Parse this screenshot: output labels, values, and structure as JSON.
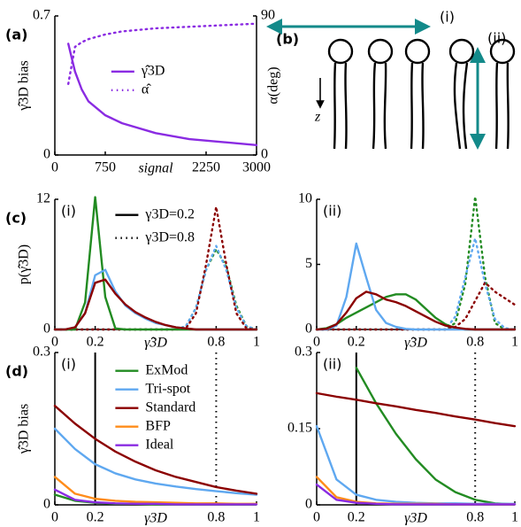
{
  "chart_data": [
    {
      "type": "line",
      "panel_label": "(a)",
      "xlabel": "signal",
      "ylabel": "γ̂3D bias",
      "y2label": "α(deg)",
      "x": [
        200,
        300,
        400,
        500,
        750,
        1000,
        1500,
        2000,
        2500,
        3000
      ],
      "xlim": [
        0,
        3000
      ],
      "xticks": [
        0,
        750,
        2250,
        3000
      ],
      "ylim": [
        0,
        0.7
      ],
      "yticks": [
        0,
        0.7
      ],
      "y2lim": [
        0,
        90
      ],
      "y2ticks": [
        0,
        90
      ],
      "legend": "center",
      "series": [
        {
          "name": "γ̂3D",
          "color": "#8a2be2",
          "dash": false,
          "values": [
            0.56,
            0.42,
            0.33,
            0.27,
            0.2,
            0.16,
            0.11,
            0.08,
            0.065,
            0.05
          ]
        },
        {
          "name": "α̂",
          "color": "#8a2be2",
          "dash": true,
          "axis": "y2",
          "values": [
            46,
            70,
            73,
            75,
            78,
            80,
            82,
            83,
            84,
            85
          ]
        }
      ]
    },
    {
      "type": "line",
      "panel_label": "(c)",
      "sub_label": "(i)",
      "xlabel": "γ̂3D",
      "ylabel": "p(γ̂3D)",
      "x": [
        0,
        0.05,
        0.1,
        0.15,
        0.2,
        0.25,
        0.3,
        0.35,
        0.4,
        0.45,
        0.5,
        0.55,
        0.6,
        0.65,
        0.7,
        0.75,
        0.8,
        0.85,
        0.9,
        0.95,
        1
      ],
      "xlim": [
        0,
        1
      ],
      "xticks": [
        0,
        0.2,
        0.8,
        1
      ],
      "ylim": [
        0,
        12
      ],
      "yticks": [
        0,
        12
      ],
      "legend": "upper center",
      "style_legend": [
        {
          "label": "γ3D=0.2",
          "dash": false
        },
        {
          "label": "γ3D=0.8",
          "dash": true
        }
      ],
      "series": [
        {
          "color": "#228b22",
          "dash": true,
          "values": [
            0,
            0,
            0,
            0,
            0,
            0,
            0,
            0,
            0,
            0,
            0,
            0,
            0,
            0.3,
            2,
            5.5,
            7.4,
            5.8,
            2.2,
            0.3,
            0
          ]
        },
        {
          "color": "#5fa8f0",
          "dash": true,
          "values": [
            0,
            0,
            0,
            0,
            0,
            0,
            0,
            0,
            0,
            0,
            0,
            0,
            0,
            0.3,
            2,
            5.5,
            7.7,
            5.5,
            2,
            0.3,
            0
          ]
        },
        {
          "color": "#8b0000",
          "dash": true,
          "values": [
            0,
            0,
            0,
            0,
            0,
            0,
            0,
            0,
            0,
            0,
            0,
            0,
            0,
            0.1,
            1.5,
            6,
            11.3,
            6,
            1.5,
            0.1,
            0
          ]
        },
        {
          "color": "#228b22",
          "dash": false,
          "values": [
            0,
            0,
            0,
            2.5,
            12.2,
            3,
            0.1,
            0,
            0,
            0,
            0,
            0,
            0,
            0,
            0,
            0,
            0,
            0,
            0,
            0,
            0
          ]
        },
        {
          "color": "#5fa8f0",
          "dash": false,
          "values": [
            0,
            0,
            0.2,
            1.5,
            5,
            5.5,
            3.5,
            2.2,
            1.5,
            1,
            0.6,
            0.4,
            0.2,
            0.1,
            0,
            0,
            0,
            0,
            0,
            0,
            0
          ]
        },
        {
          "color": "#8b0000",
          "dash": false,
          "values": [
            0,
            0,
            0.2,
            1.5,
            4.3,
            4.6,
            3.3,
            2.3,
            1.6,
            1.1,
            0.7,
            0.4,
            0.2,
            0.1,
            0,
            0,
            0,
            0,
            0,
            0,
            0
          ]
        }
      ]
    },
    {
      "type": "line",
      "sub_label": "(ii)",
      "xlabel": "γ̂3D",
      "x": [
        0,
        0.05,
        0.1,
        0.15,
        0.2,
        0.25,
        0.3,
        0.35,
        0.4,
        0.45,
        0.5,
        0.55,
        0.6,
        0.65,
        0.7,
        0.75,
        0.8,
        0.85,
        0.9,
        0.95,
        1
      ],
      "xlim": [
        0,
        1
      ],
      "xticks": [
        0,
        0.2,
        0.8,
        1
      ],
      "ylim": [
        0,
        10
      ],
      "yticks": [
        0,
        5,
        10
      ],
      "series": [
        {
          "color": "#228b22",
          "dash": true,
          "values": [
            0,
            0,
            0,
            0,
            0,
            0,
            0,
            0,
            0,
            0,
            0,
            0,
            0,
            0,
            0.5,
            3.5,
            10.2,
            4,
            0.5,
            0,
            0
          ]
        },
        {
          "color": "#5fa8f0",
          "dash": true,
          "values": [
            0,
            0,
            0,
            0,
            0,
            0,
            0,
            0,
            0,
            0,
            0,
            0,
            0,
            0,
            1,
            4,
            7,
            3.5,
            0.8,
            0.1,
            0
          ]
        },
        {
          "color": "#8b0000",
          "dash": true,
          "values": [
            0,
            0,
            0,
            0,
            0,
            0,
            0,
            0,
            0,
            0,
            0,
            0,
            0,
            0,
            0.2,
            0.8,
            2.2,
            3.6,
            2.9,
            2.4,
            1.9
          ]
        },
        {
          "color": "#228b22",
          "dash": false,
          "values": [
            0,
            0.1,
            0.4,
            0.9,
            1.3,
            1.7,
            2.1,
            2.5,
            2.7,
            2.7,
            2.3,
            1.6,
            0.9,
            0.4,
            0.1,
            0,
            0,
            0,
            0,
            0,
            0
          ]
        },
        {
          "color": "#5fa8f0",
          "dash": false,
          "values": [
            0,
            0,
            0.3,
            2.5,
            6.6,
            4,
            1.5,
            0.5,
            0.2,
            0.05,
            0,
            0,
            0,
            0,
            0,
            0,
            0,
            0,
            0,
            0,
            0
          ]
        },
        {
          "color": "#8b0000",
          "dash": false,
          "values": [
            0,
            0.05,
            0.4,
            1.3,
            2.4,
            2.9,
            2.7,
            2.3,
            2.1,
            1.8,
            1.4,
            1,
            0.6,
            0.3,
            0.15,
            0.05,
            0,
            0,
            0,
            0,
            0
          ]
        }
      ]
    },
    {
      "type": "line",
      "panel_label": "(d)",
      "sub_label": "(i)",
      "xlabel": "γ3D",
      "ylabel": "γ̂3D bias",
      "x": [
        0,
        0.1,
        0.2,
        0.3,
        0.4,
        0.5,
        0.6,
        0.7,
        0.8,
        0.9,
        1
      ],
      "xlim": [
        0,
        1
      ],
      "xticks": [
        0,
        0.2,
        0.8,
        1
      ],
      "ylim": [
        0,
        0.3
      ],
      "yticks": [
        0,
        0.3
      ],
      "vlines": [
        {
          "x": 0.2,
          "dash": false
        },
        {
          "x": 0.8,
          "dash": true
        }
      ],
      "legend": "upper center",
      "series": [
        {
          "name": "ExMod",
          "color": "#228b22",
          "dash": false,
          "values": [
            0.02,
            0.008,
            0.004,
            0.002,
            0.002,
            0.001,
            0.001,
            0.001,
            0.001,
            0.001,
            0.001
          ]
        },
        {
          "name": "Tri-spot",
          "color": "#5fa8f0",
          "dash": false,
          "values": [
            0.15,
            0.11,
            0.08,
            0.062,
            0.05,
            0.042,
            0.036,
            0.031,
            0.027,
            0.023,
            0.02
          ]
        },
        {
          "name": "Standard",
          "color": "#8b0000",
          "dash": false,
          "values": [
            0.195,
            0.16,
            0.13,
            0.105,
            0.085,
            0.068,
            0.055,
            0.045,
            0.035,
            0.028,
            0.022
          ]
        },
        {
          "name": "BFP",
          "color": "#ff8c1a",
          "dash": false,
          "values": [
            0.055,
            0.022,
            0.012,
            0.008,
            0.006,
            0.005,
            0.004,
            0.003,
            0.003,
            0.002,
            0.002
          ]
        },
        {
          "name": "Ideal",
          "color": "#8a2be2",
          "dash": false,
          "values": [
            0.03,
            0.01,
            0.005,
            0.003,
            0.002,
            0.002,
            0.001,
            0.001,
            0.001,
            0.001,
            0.001
          ]
        }
      ]
    },
    {
      "type": "line",
      "sub_label": "(ii)",
      "xlabel": "γ3D",
      "x": [
        0,
        0.1,
        0.2,
        0.3,
        0.4,
        0.5,
        0.6,
        0.7,
        0.8,
        0.9,
        1
      ],
      "xlim": [
        0,
        1
      ],
      "xticks": [
        0,
        0.2,
        0.8,
        1
      ],
      "ylim": [
        0,
        0.3
      ],
      "yticks": [
        0,
        0.15,
        0.3
      ],
      "vlines": [
        {
          "x": 0.2,
          "dash": false
        },
        {
          "x": 0.8,
          "dash": true
        }
      ],
      "series": [
        {
          "color": "#228b22",
          "dash": false,
          "values": [
            null,
            null,
            0.27,
            0.2,
            0.14,
            0.09,
            0.05,
            0.025,
            0.01,
            0.003,
            0.001
          ]
        },
        {
          "color": "#5fa8f0",
          "dash": false,
          "values": [
            0.155,
            0.05,
            0.02,
            0.01,
            0.006,
            0.004,
            0.003,
            0.003,
            0.002,
            0.002,
            0.002
          ]
        },
        {
          "color": "#8b0000",
          "dash": false,
          "values": [
            0.22,
            0.213,
            0.207,
            0.2,
            0.194,
            0.187,
            0.181,
            0.174,
            0.168,
            0.161,
            0.155
          ]
        },
        {
          "color": "#ff8c1a",
          "dash": false,
          "values": [
            0.055,
            0.015,
            0.006,
            0.003,
            0.002,
            0.002,
            0.002,
            0.001,
            0.001,
            0.001,
            0.001
          ]
        },
        {
          "color": "#8a2be2",
          "dash": false,
          "values": [
            0.04,
            0.01,
            0.004,
            0.002,
            0.001,
            0.001,
            0.001,
            0.001,
            0.001,
            0.001,
            0.001
          ]
        }
      ]
    }
  ],
  "diagram": {
    "panel_label": "(b)",
    "texts": [
      "(i)",
      "(ii)",
      "z"
    ]
  }
}
